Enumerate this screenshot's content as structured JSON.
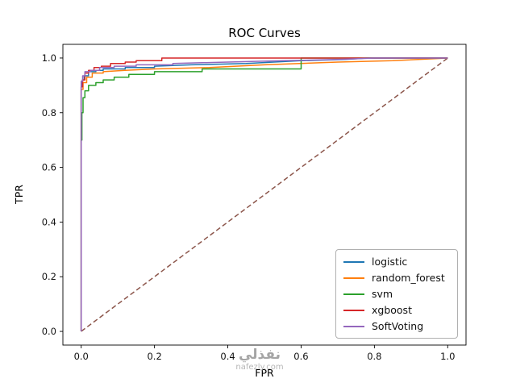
{
  "chart_data": {
    "type": "line",
    "title": "ROC Curves",
    "xlabel": "FPR",
    "ylabel": "TPR",
    "xlim": [
      -0.05,
      1.05
    ],
    "ylim": [
      -0.05,
      1.05
    ],
    "xticks": [
      0.0,
      0.2,
      0.4,
      0.6,
      0.8,
      1.0
    ],
    "xtick_labels": [
      "0.0",
      "0.2",
      "0.4",
      "0.6",
      "0.8",
      "1.0"
    ],
    "yticks": [
      0.0,
      0.2,
      0.4,
      0.6,
      0.8,
      1.0
    ],
    "ytick_labels": [
      "0.0",
      "0.2",
      "0.4",
      "0.6",
      "0.8",
      "1.0"
    ],
    "grid": false,
    "legend_position": "lower right",
    "series": [
      {
        "name": "logistic",
        "color": "#1f77b4",
        "points": [
          [
            0,
            0
          ],
          [
            0,
            0.895
          ],
          [
            0.003,
            0.895
          ],
          [
            0.003,
            0.92
          ],
          [
            0.008,
            0.92
          ],
          [
            0.008,
            0.935
          ],
          [
            0.02,
            0.935
          ],
          [
            0.02,
            0.95
          ],
          [
            0.04,
            0.95
          ],
          [
            0.04,
            0.955
          ],
          [
            0.06,
            0.955
          ],
          [
            0.06,
            0.96
          ],
          [
            0.12,
            0.96
          ],
          [
            0.12,
            0.965
          ],
          [
            0.2,
            0.965
          ],
          [
            0.2,
            0.97
          ],
          [
            0.3,
            0.975
          ],
          [
            0.45,
            0.98
          ],
          [
            0.6,
            0.99
          ],
          [
            0.72,
            0.995
          ],
          [
            0.78,
            1.0
          ],
          [
            1,
            1
          ]
        ]
      },
      {
        "name": "random_forest",
        "color": "#ff7f0e",
        "points": [
          [
            0,
            0
          ],
          [
            0,
            0.885
          ],
          [
            0.005,
            0.885
          ],
          [
            0.005,
            0.91
          ],
          [
            0.015,
            0.91
          ],
          [
            0.015,
            0.93
          ],
          [
            0.03,
            0.93
          ],
          [
            0.03,
            0.945
          ],
          [
            0.06,
            0.945
          ],
          [
            0.06,
            0.95
          ],
          [
            0.12,
            0.955
          ],
          [
            0.2,
            0.96
          ],
          [
            0.35,
            0.965
          ],
          [
            0.5,
            0.975
          ],
          [
            0.7,
            0.985
          ],
          [
            0.85,
            0.99
          ],
          [
            1,
            1
          ]
        ]
      },
      {
        "name": "svm",
        "color": "#2ca02c",
        "points": [
          [
            0,
            0
          ],
          [
            0,
            0.7
          ],
          [
            0.002,
            0.7
          ],
          [
            0.002,
            0.8
          ],
          [
            0.005,
            0.8
          ],
          [
            0.005,
            0.855
          ],
          [
            0.01,
            0.855
          ],
          [
            0.01,
            0.88
          ],
          [
            0.02,
            0.88
          ],
          [
            0.02,
            0.9
          ],
          [
            0.04,
            0.9
          ],
          [
            0.04,
            0.91
          ],
          [
            0.06,
            0.91
          ],
          [
            0.06,
            0.92
          ],
          [
            0.09,
            0.92
          ],
          [
            0.09,
            0.93
          ],
          [
            0.13,
            0.93
          ],
          [
            0.13,
            0.94
          ],
          [
            0.2,
            0.94
          ],
          [
            0.2,
            0.95
          ],
          [
            0.33,
            0.95
          ],
          [
            0.33,
            0.96
          ],
          [
            0.6,
            0.96
          ],
          [
            0.6,
            1.0
          ],
          [
            1,
            1
          ]
        ]
      },
      {
        "name": "xgboost",
        "color": "#d62728",
        "points": [
          [
            0,
            0
          ],
          [
            0,
            0.895
          ],
          [
            0.004,
            0.895
          ],
          [
            0.004,
            0.92
          ],
          [
            0.01,
            0.92
          ],
          [
            0.01,
            0.945
          ],
          [
            0.02,
            0.945
          ],
          [
            0.02,
            0.955
          ],
          [
            0.035,
            0.955
          ],
          [
            0.035,
            0.965
          ],
          [
            0.055,
            0.965
          ],
          [
            0.055,
            0.97
          ],
          [
            0.08,
            0.97
          ],
          [
            0.08,
            0.98
          ],
          [
            0.12,
            0.98
          ],
          [
            0.12,
            0.985
          ],
          [
            0.15,
            0.985
          ],
          [
            0.15,
            0.99
          ],
          [
            0.22,
            0.99
          ],
          [
            0.22,
            1.0
          ],
          [
            1,
            1
          ]
        ]
      },
      {
        "name": "SoftVoting",
        "color": "#9467bd",
        "points": [
          [
            0,
            0
          ],
          [
            0,
            0.915
          ],
          [
            0.004,
            0.915
          ],
          [
            0.004,
            0.935
          ],
          [
            0.01,
            0.935
          ],
          [
            0.01,
            0.95
          ],
          [
            0.025,
            0.95
          ],
          [
            0.025,
            0.955
          ],
          [
            0.05,
            0.955
          ],
          [
            0.05,
            0.965
          ],
          [
            0.09,
            0.965
          ],
          [
            0.09,
            0.97
          ],
          [
            0.15,
            0.97
          ],
          [
            0.15,
            0.975
          ],
          [
            0.25,
            0.975
          ],
          [
            0.25,
            0.98
          ],
          [
            0.4,
            0.985
          ],
          [
            0.55,
            0.99
          ],
          [
            0.7,
            0.995
          ],
          [
            0.8,
            1.0
          ],
          [
            1,
            1
          ]
        ]
      }
    ],
    "reference_line": {
      "name": "chance-diagonal",
      "color": "#8c564b",
      "style": "dashed",
      "points": [
        [
          0,
          0
        ],
        [
          1,
          1
        ]
      ]
    }
  },
  "watermark": {
    "arabic": "نفذلي",
    "domain": "nafezly.com"
  }
}
